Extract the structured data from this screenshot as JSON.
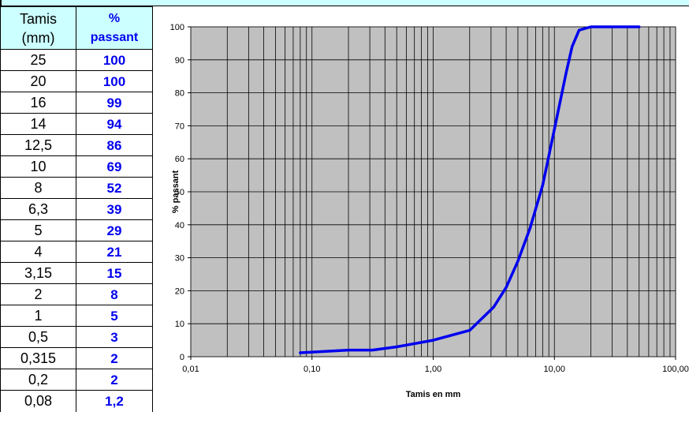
{
  "table": {
    "header_col1_line1": "Tamis",
    "header_col1_line2": "(mm)",
    "header_col2_line1": "%",
    "header_col2_line2": "passant",
    "rows": [
      {
        "sieve": "25",
        "passing": "100"
      },
      {
        "sieve": "20",
        "passing": "100"
      },
      {
        "sieve": "16",
        "passing": "99"
      },
      {
        "sieve": "14",
        "passing": "94"
      },
      {
        "sieve": "12,5",
        "passing": "86"
      },
      {
        "sieve": "10",
        "passing": "69"
      },
      {
        "sieve": "8",
        "passing": "52"
      },
      {
        "sieve": "6,3",
        "passing": "39"
      },
      {
        "sieve": "5",
        "passing": "29"
      },
      {
        "sieve": "4",
        "passing": "21"
      },
      {
        "sieve": "3,15",
        "passing": "15"
      },
      {
        "sieve": "2",
        "passing": "8"
      },
      {
        "sieve": "1",
        "passing": "5"
      },
      {
        "sieve": "0,5",
        "passing": "3"
      },
      {
        "sieve": "0,315",
        "passing": "2"
      },
      {
        "sieve": "0,2",
        "passing": "2"
      },
      {
        "sieve": "0,08",
        "passing": "1,2"
      }
    ]
  },
  "chart_data": {
    "type": "line",
    "xlabel": "Tamis en mm",
    "ylabel": "% passant",
    "x_scale": "log",
    "xlim": [
      0.01,
      100
    ],
    "ylim": [
      0,
      100
    ],
    "grid": true,
    "x_tick_labels": [
      "0,01",
      "0,10",
      "1,00",
      "10,00",
      "100,00"
    ],
    "x_tick_values": [
      0.01,
      0.1,
      1,
      10,
      100
    ],
    "y_ticks": [
      0,
      10,
      20,
      30,
      40,
      50,
      60,
      70,
      80,
      90,
      100
    ],
    "series": [
      {
        "x": [
          0.08,
          0.2,
          0.315,
          0.5,
          1,
          2,
          3.15,
          4,
          5,
          6.3,
          8,
          10,
          12.5,
          14,
          16,
          20,
          25,
          50
        ],
        "values": [
          1.2,
          2,
          2,
          3,
          5,
          8,
          15,
          21,
          29,
          39,
          52,
          69,
          86,
          94,
          99,
          100,
          100,
          100
        ]
      }
    ],
    "colors": {
      "plot_bg": "#c0c0c0",
      "line": "#0000ee",
      "grid": "#000000"
    }
  }
}
